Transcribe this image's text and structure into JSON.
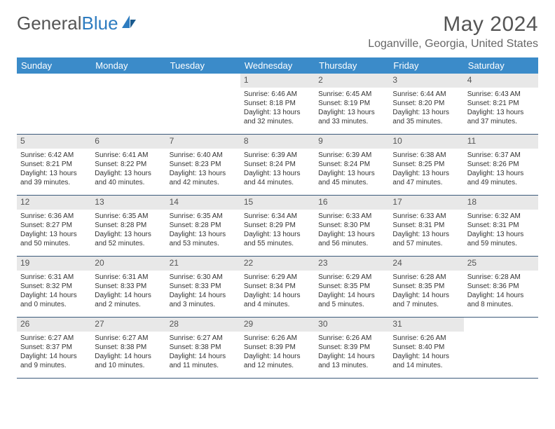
{
  "logo": {
    "text1": "General",
    "text2": "Blue"
  },
  "title": "May 2024",
  "location": "Loganville, Georgia, United States",
  "colors": {
    "header_bg": "#3b8bc9",
    "header_text": "#ffffff",
    "daynum_bg": "#e8e8e8",
    "border": "#3b5a7a",
    "logo_blue": "#2e7cc0"
  },
  "weekdays": [
    "Sunday",
    "Monday",
    "Tuesday",
    "Wednesday",
    "Thursday",
    "Friday",
    "Saturday"
  ],
  "weeks": [
    [
      null,
      null,
      null,
      {
        "n": "1",
        "sr": "6:46 AM",
        "ss": "8:18 PM",
        "dl": "13 hours and 32 minutes."
      },
      {
        "n": "2",
        "sr": "6:45 AM",
        "ss": "8:19 PM",
        "dl": "13 hours and 33 minutes."
      },
      {
        "n": "3",
        "sr": "6:44 AM",
        "ss": "8:20 PM",
        "dl": "13 hours and 35 minutes."
      },
      {
        "n": "4",
        "sr": "6:43 AM",
        "ss": "8:21 PM",
        "dl": "13 hours and 37 minutes."
      }
    ],
    [
      {
        "n": "5",
        "sr": "6:42 AM",
        "ss": "8:21 PM",
        "dl": "13 hours and 39 minutes."
      },
      {
        "n": "6",
        "sr": "6:41 AM",
        "ss": "8:22 PM",
        "dl": "13 hours and 40 minutes."
      },
      {
        "n": "7",
        "sr": "6:40 AM",
        "ss": "8:23 PM",
        "dl": "13 hours and 42 minutes."
      },
      {
        "n": "8",
        "sr": "6:39 AM",
        "ss": "8:24 PM",
        "dl": "13 hours and 44 minutes."
      },
      {
        "n": "9",
        "sr": "6:39 AM",
        "ss": "8:24 PM",
        "dl": "13 hours and 45 minutes."
      },
      {
        "n": "10",
        "sr": "6:38 AM",
        "ss": "8:25 PM",
        "dl": "13 hours and 47 minutes."
      },
      {
        "n": "11",
        "sr": "6:37 AM",
        "ss": "8:26 PM",
        "dl": "13 hours and 49 minutes."
      }
    ],
    [
      {
        "n": "12",
        "sr": "6:36 AM",
        "ss": "8:27 PM",
        "dl": "13 hours and 50 minutes."
      },
      {
        "n": "13",
        "sr": "6:35 AM",
        "ss": "8:28 PM",
        "dl": "13 hours and 52 minutes."
      },
      {
        "n": "14",
        "sr": "6:35 AM",
        "ss": "8:28 PM",
        "dl": "13 hours and 53 minutes."
      },
      {
        "n": "15",
        "sr": "6:34 AM",
        "ss": "8:29 PM",
        "dl": "13 hours and 55 minutes."
      },
      {
        "n": "16",
        "sr": "6:33 AM",
        "ss": "8:30 PM",
        "dl": "13 hours and 56 minutes."
      },
      {
        "n": "17",
        "sr": "6:33 AM",
        "ss": "8:31 PM",
        "dl": "13 hours and 57 minutes."
      },
      {
        "n": "18",
        "sr": "6:32 AM",
        "ss": "8:31 PM",
        "dl": "13 hours and 59 minutes."
      }
    ],
    [
      {
        "n": "19",
        "sr": "6:31 AM",
        "ss": "8:32 PM",
        "dl": "14 hours and 0 minutes."
      },
      {
        "n": "20",
        "sr": "6:31 AM",
        "ss": "8:33 PM",
        "dl": "14 hours and 2 minutes."
      },
      {
        "n": "21",
        "sr": "6:30 AM",
        "ss": "8:33 PM",
        "dl": "14 hours and 3 minutes."
      },
      {
        "n": "22",
        "sr": "6:29 AM",
        "ss": "8:34 PM",
        "dl": "14 hours and 4 minutes."
      },
      {
        "n": "23",
        "sr": "6:29 AM",
        "ss": "8:35 PM",
        "dl": "14 hours and 5 minutes."
      },
      {
        "n": "24",
        "sr": "6:28 AM",
        "ss": "8:35 PM",
        "dl": "14 hours and 7 minutes."
      },
      {
        "n": "25",
        "sr": "6:28 AM",
        "ss": "8:36 PM",
        "dl": "14 hours and 8 minutes."
      }
    ],
    [
      {
        "n": "26",
        "sr": "6:27 AM",
        "ss": "8:37 PM",
        "dl": "14 hours and 9 minutes."
      },
      {
        "n": "27",
        "sr": "6:27 AM",
        "ss": "8:38 PM",
        "dl": "14 hours and 10 minutes."
      },
      {
        "n": "28",
        "sr": "6:27 AM",
        "ss": "8:38 PM",
        "dl": "14 hours and 11 minutes."
      },
      {
        "n": "29",
        "sr": "6:26 AM",
        "ss": "8:39 PM",
        "dl": "14 hours and 12 minutes."
      },
      {
        "n": "30",
        "sr": "6:26 AM",
        "ss": "8:39 PM",
        "dl": "14 hours and 13 minutes."
      },
      {
        "n": "31",
        "sr": "6:26 AM",
        "ss": "8:40 PM",
        "dl": "14 hours and 14 minutes."
      },
      null
    ]
  ]
}
